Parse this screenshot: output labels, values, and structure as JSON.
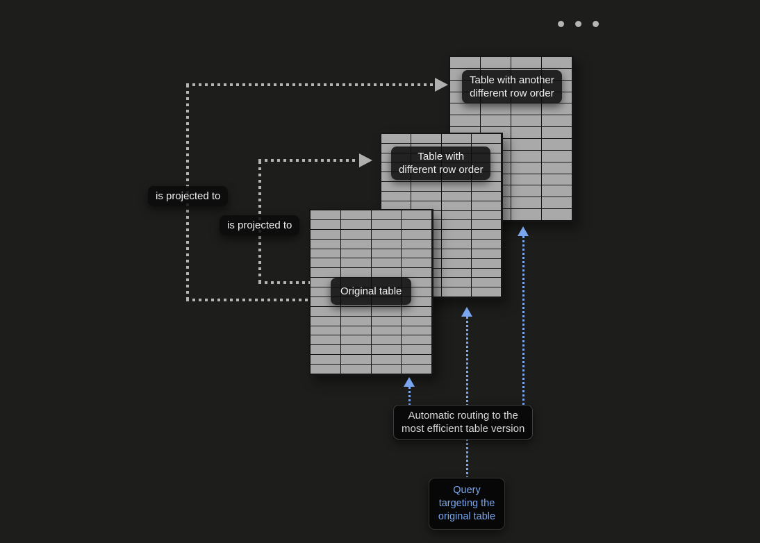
{
  "header": {
    "more_options_icon": "three-dots"
  },
  "colors": {
    "background": "#1d1d1b",
    "table_fill": "#a9a9a9",
    "table_grid_line": "#151515",
    "label_text": "#f0f0f0",
    "accent_blue": "#7aa6f0",
    "dotted_gray": "#b5b5b5"
  },
  "diagram": {
    "tables": [
      {
        "id": "original",
        "label_lines": [
          "Original table"
        ],
        "grid": {
          "rows": 17,
          "cols": 4
        }
      },
      {
        "id": "different-row-order",
        "label_lines": [
          "Table with",
          "different row order"
        ],
        "grid": {
          "rows": 17,
          "cols": 4
        }
      },
      {
        "id": "another-different-row-order",
        "label_lines": [
          "Table with another",
          "different row order"
        ],
        "grid": {
          "rows": 14,
          "cols": 4
        }
      }
    ],
    "edges": [
      {
        "label": "is projected to"
      },
      {
        "label": "is projected to"
      }
    ],
    "routing": {
      "lines": [
        "Automatic routing to the",
        "most efficient table version"
      ]
    },
    "query": {
      "lines": [
        "Query",
        "targeting the",
        "original table"
      ]
    }
  }
}
